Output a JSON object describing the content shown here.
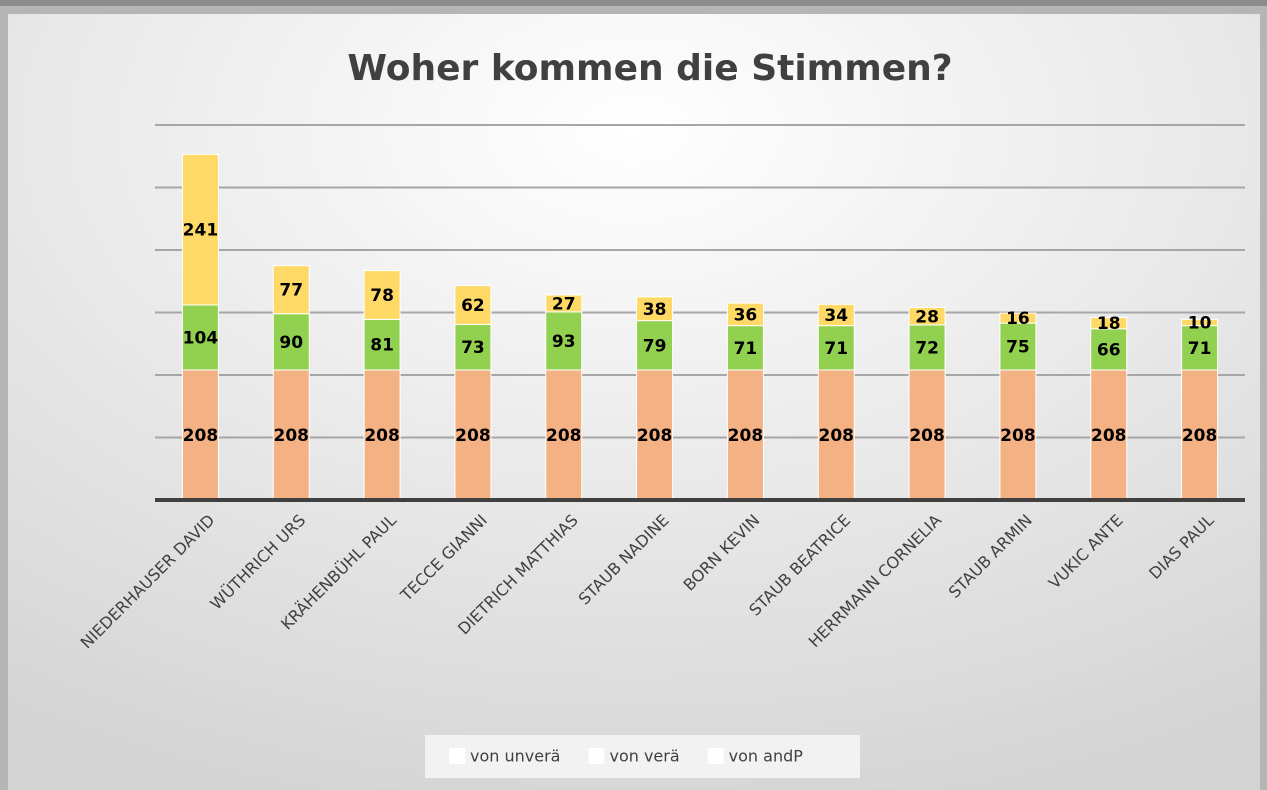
{
  "chart_data": {
    "type": "stacked_bar",
    "title": "Woher kommen die Stimmen?",
    "categories": [
      "NIEDERHAUSER DAVID",
      "WÜTHRICH URS",
      "KRÄHENBÜHL PAUL",
      "TECCE GIANNI",
      "DIETRICH MATTHIAS",
      "STAUB NADINE",
      "BORN KEVIN",
      "STAUB BEATRICE",
      "HERRMANN CORNELIA",
      "STAUB ARMIN",
      "VUKIC ANTE",
      "DIAS PAUL"
    ],
    "series": [
      {
        "name": "von unverä",
        "color": "#f4b183",
        "values": [
          208,
          208,
          208,
          208,
          208,
          208,
          208,
          208,
          208,
          208,
          208,
          208
        ]
      },
      {
        "name": "von verä",
        "color": "#92d050",
        "values": [
          104,
          90,
          81,
          73,
          93,
          79,
          71,
          71,
          72,
          75,
          66,
          71
        ]
      },
      {
        "name": "von andP",
        "color": "#ffd966",
        "values": [
          241,
          77,
          78,
          62,
          27,
          38,
          36,
          34,
          28,
          16,
          18,
          10
        ]
      }
    ],
    "ylim": [
      0,
      600
    ],
    "yticks": [
      0,
      100,
      200,
      300,
      400,
      500,
      600
    ],
    "grid": true,
    "legend": "bottom"
  }
}
